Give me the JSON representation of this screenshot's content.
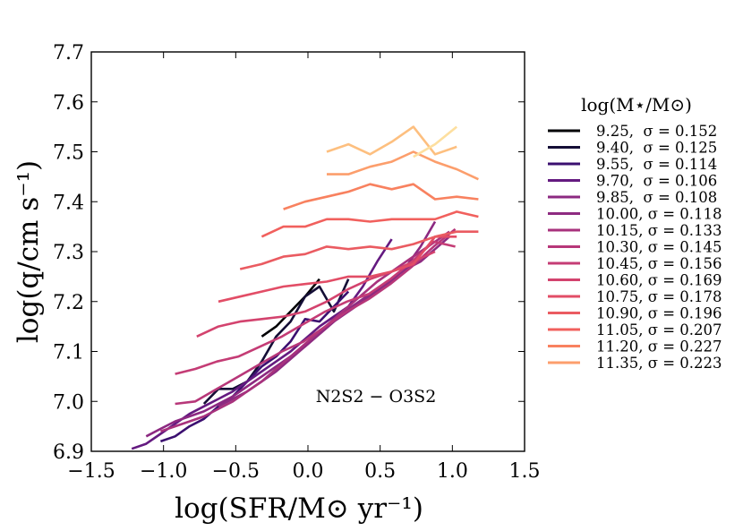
{
  "chart_data": {
    "type": "line",
    "xlabel": "log(SFR/M⊙ yr⁻¹)",
    "ylabel": "log(q/cm s⁻¹)",
    "xlim": [
      -1.5,
      1.5
    ],
    "ylim": [
      6.9,
      7.7
    ],
    "xticks": [
      -1.5,
      -1.0,
      -0.5,
      0.0,
      0.5,
      1.0,
      1.5
    ],
    "xtick_labels": [
      "−1.5",
      "−1.0",
      "−0.5",
      "0.0",
      "0.5",
      "1.0",
      "1.5"
    ],
    "yticks": [
      6.9,
      7.0,
      7.1,
      7.2,
      7.3,
      7.4,
      7.5,
      7.6,
      7.7
    ],
    "ytick_labels": [
      "6.9",
      "7.0",
      "7.1",
      "7.2",
      "7.3",
      "7.4",
      "7.5",
      "7.6",
      "7.7"
    ],
    "annotation": "N2S2 − O3S2",
    "legend_title": "log(M⋆/M⊙)",
    "legend_position": "right, outside plot",
    "series": [
      {
        "name": "9.25,  σ = 0.152",
        "color": "#000004",
        "x": [
          -0.32,
          -0.22,
          -0.12,
          -0.02,
          0.08
        ],
        "y": [
          7.13,
          7.15,
          7.18,
          7.21,
          7.245
        ]
      },
      {
        "name": "9.40,  σ = 0.125",
        "color": "#140e36",
        "x": [
          -0.72,
          -0.62,
          -0.52,
          -0.42,
          -0.32,
          -0.22,
          -0.12,
          -0.02,
          0.08,
          0.18,
          0.28
        ],
        "y": [
          6.995,
          7.025,
          7.025,
          7.04,
          7.08,
          7.13,
          7.16,
          7.21,
          7.23,
          7.18,
          7.245
        ]
      },
      {
        "name": "9.55,  σ = 0.114",
        "color": "#3b0f70",
        "x": [
          -1.02,
          -0.92,
          -0.82,
          -0.72,
          -0.62,
          -0.52,
          -0.42,
          -0.32,
          -0.22,
          -0.12,
          -0.02,
          0.08,
          0.18,
          0.28
        ],
        "y": [
          6.92,
          6.93,
          6.95,
          6.965,
          6.99,
          7.01,
          7.04,
          7.07,
          7.09,
          7.12,
          7.165,
          7.16,
          7.19,
          7.22
        ]
      },
      {
        "name": "9.70,  σ = 0.106",
        "color": "#641a80",
        "x": [
          -1.22,
          -1.12,
          -1.02,
          -0.92,
          -0.82,
          -0.72,
          -0.62,
          -0.52,
          -0.42,
          -0.32,
          -0.22,
          -0.12,
          -0.02,
          0.08,
          0.18,
          0.28,
          0.38,
          0.48,
          0.58
        ],
        "y": [
          6.905,
          6.915,
          6.935,
          6.955,
          6.975,
          6.99,
          7.005,
          7.02,
          7.04,
          7.06,
          7.08,
          7.1,
          7.125,
          7.15,
          7.17,
          7.19,
          7.23,
          7.28,
          7.325
        ]
      },
      {
        "name": "9.85,  σ = 0.108",
        "color": "#8c2981",
        "x": [
          -1.12,
          -1.02,
          -0.92,
          -0.82,
          -0.72,
          -0.62,
          -0.52,
          -0.42,
          -0.32,
          -0.22,
          -0.12,
          -0.02,
          0.08,
          0.18,
          0.28,
          0.38,
          0.48,
          0.58,
          0.68,
          0.78,
          0.88
        ],
        "y": [
          6.93,
          6.945,
          6.96,
          6.97,
          6.98,
          6.995,
          7.01,
          7.03,
          7.05,
          7.07,
          7.09,
          7.11,
          7.135,
          7.16,
          7.18,
          7.2,
          7.22,
          7.24,
          7.27,
          7.31,
          7.36
        ]
      },
      {
        "name": "10.00, σ = 0.118",
        "color": "#8e2b81",
        "x": [
          -0.62,
          -0.52,
          -0.42,
          -0.32,
          -0.22,
          -0.12,
          -0.02,
          0.08,
          0.18,
          0.28,
          0.38,
          0.48,
          0.58,
          0.68,
          0.78,
          0.88,
          0.98
        ],
        "y": [
          6.99,
          7.005,
          7.02,
          7.04,
          7.06,
          7.085,
          7.11,
          7.135,
          7.16,
          7.185,
          7.205,
          7.225,
          7.245,
          7.265,
          7.28,
          7.305,
          7.33
        ]
      },
      {
        "name": "10.15, σ = 0.133",
        "color": "#a8327d",
        "x": [
          -1.02,
          -0.92,
          -0.82,
          -0.72,
          -0.62,
          -0.52,
          -0.42,
          -0.32,
          -0.22,
          -0.12,
          -0.02,
          0.08,
          0.18,
          0.28,
          0.38,
          0.48,
          0.58,
          0.68,
          0.78,
          0.88,
          0.98
        ],
        "y": [
          6.94,
          6.95,
          6.96,
          6.97,
          6.985,
          7.0,
          7.02,
          7.04,
          7.065,
          7.09,
          7.115,
          7.14,
          7.165,
          7.19,
          7.215,
          7.24,
          7.26,
          7.28,
          7.3,
          7.32,
          7.34
        ]
      },
      {
        "name": "10.30, σ = 0.145",
        "color": "#b73779",
        "x": [
          -0.92,
          -0.78,
          -0.63,
          -0.48,
          -0.33,
          -0.18,
          -0.03,
          0.12,
          0.27,
          0.42,
          0.57,
          0.72,
          0.87,
          1.02
        ],
        "y": [
          6.995,
          7.0,
          7.025,
          7.05,
          7.075,
          7.1,
          7.12,
          7.15,
          7.18,
          7.205,
          7.235,
          7.27,
          7.31,
          7.345
        ]
      },
      {
        "name": "10.45, σ = 0.156",
        "color": "#c43c75",
        "x": [
          -0.92,
          -0.78,
          -0.63,
          -0.48,
          -0.33,
          -0.18,
          -0.03,
          0.12,
          0.27,
          0.42,
          0.57,
          0.72,
          0.87,
          1.02
        ],
        "y": [
          7.055,
          7.065,
          7.08,
          7.09,
          7.11,
          7.13,
          7.155,
          7.18,
          7.2,
          7.215,
          7.245,
          7.28,
          7.32,
          7.31
        ]
      },
      {
        "name": "10.60, σ = 0.169",
        "color": "#d3436e",
        "x": [
          -0.77,
          -0.62,
          -0.47,
          -0.32,
          -0.17,
          -0.02,
          0.13,
          0.28,
          0.43,
          0.58,
          0.73,
          0.88
        ],
        "y": [
          7.13,
          7.15,
          7.16,
          7.165,
          7.17,
          7.18,
          7.2,
          7.225,
          7.245,
          7.26,
          7.28,
          7.3
        ]
      },
      {
        "name": "10.75, σ = 0.178",
        "color": "#e24d66",
        "x": [
          -0.62,
          -0.47,
          -0.32,
          -0.17,
          -0.02,
          0.13,
          0.28,
          0.43,
          0.58,
          0.73,
          0.88,
          1.03
        ],
        "y": [
          7.2,
          7.21,
          7.22,
          7.23,
          7.235,
          7.24,
          7.25,
          7.25,
          7.26,
          7.275,
          7.33,
          7.33
        ]
      },
      {
        "name": "10.90, σ = 0.196",
        "color": "#ea5b61",
        "x": [
          -0.47,
          -0.32,
          -0.17,
          -0.02,
          0.13,
          0.28,
          0.43,
          0.58,
          0.73,
          0.88,
          1.03,
          1.18
        ],
        "y": [
          7.265,
          7.275,
          7.29,
          7.295,
          7.31,
          7.305,
          7.31,
          7.305,
          7.315,
          7.33,
          7.34,
          7.34
        ]
      },
      {
        "name": "11.05, σ = 0.207",
        "color": "#f1605d",
        "x": [
          -0.32,
          -0.17,
          -0.02,
          0.13,
          0.28,
          0.43,
          0.58,
          0.73,
          0.88,
          1.03,
          1.18
        ],
        "y": [
          7.33,
          7.35,
          7.35,
          7.365,
          7.365,
          7.36,
          7.365,
          7.365,
          7.365,
          7.38,
          7.37
        ]
      },
      {
        "name": "11.20, σ = 0.227",
        "color": "#f8815f",
        "x": [
          -0.17,
          -0.02,
          0.13,
          0.28,
          0.43,
          0.58,
          0.73,
          0.88,
          1.03,
          1.18
        ],
        "y": [
          7.385,
          7.4,
          7.41,
          7.42,
          7.435,
          7.425,
          7.435,
          7.405,
          7.41,
          7.405
        ]
      },
      {
        "name": "11.35, σ = 0.223",
        "color": "#fc9e6c",
        "x": [
          0.13,
          0.28,
          0.43,
          0.58,
          0.73,
          0.88,
          1.03,
          1.18
        ],
        "y": [
          7.455,
          7.455,
          7.47,
          7.48,
          7.5,
          7.48,
          7.465,
          7.445
        ]
      },
      {
        "name": "",
        "color": "#fdbf7f",
        "x": [
          0.13,
          0.28,
          0.43,
          0.58,
          0.73,
          0.88,
          1.03
        ],
        "y": [
          7.5,
          7.515,
          7.495,
          7.52,
          7.55,
          7.495,
          7.51
        ]
      },
      {
        "name": "",
        "color": "#fddf9f",
        "x": [
          0.73,
          0.88,
          1.03
        ],
        "y": [
          7.49,
          7.515,
          7.55
        ]
      }
    ]
  }
}
